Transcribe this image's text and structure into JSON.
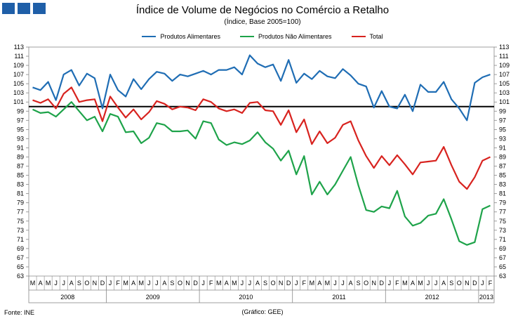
{
  "header": {
    "logo_squares": [
      "square",
      "square",
      "square"
    ]
  },
  "footer": {
    "source": "Fonte: INE",
    "credit": "(Gráfico:  GEE)"
  },
  "colors": {
    "alimentares": "#1f6db4",
    "nao_alimentares": "#1ea34a",
    "total": "#d8231f",
    "baseline": "#000000",
    "logo": "#1f5fa8"
  },
  "chart_data": {
    "type": "line",
    "title": "Índice de Volume de Negócios no Comércio a Retalho",
    "subtitle": "(Índice, Base 2005=100)",
    "ylim": [
      63,
      113
    ],
    "yticks": [
      63,
      65,
      67,
      69,
      71,
      73,
      75,
      77,
      79,
      81,
      83,
      85,
      87,
      89,
      91,
      93,
      95,
      97,
      99,
      101,
      103,
      105,
      107,
      109,
      111,
      113
    ],
    "reference_line": 100,
    "x": [
      "M",
      "A",
      "M",
      "J",
      "J",
      "A",
      "S",
      "O",
      "N",
      "D",
      "J",
      "F",
      "M",
      "A",
      "M",
      "J",
      "J",
      "A",
      "S",
      "O",
      "N",
      "D",
      "J",
      "F",
      "M",
      "A",
      "M",
      "J",
      "J",
      "A",
      "S",
      "O",
      "N",
      "D",
      "J",
      "F",
      "M",
      "A",
      "M",
      "J",
      "J",
      "A",
      "S",
      "O",
      "N",
      "D",
      "J",
      "F",
      "M",
      "A",
      "M",
      "J",
      "J",
      "A",
      "S",
      "O",
      "N",
      "D",
      "J",
      "F"
    ],
    "years": [
      {
        "label": "2008",
        "start": 0,
        "end": 10
      },
      {
        "label": "2009",
        "start": 10,
        "end": 22
      },
      {
        "label": "2010",
        "start": 22,
        "end": 34
      },
      {
        "label": "2011",
        "start": 34,
        "end": 46
      },
      {
        "label": "2012",
        "start": 46,
        "end": 58
      },
      {
        "label": "2013",
        "start": 58,
        "end": 60
      }
    ],
    "series": [
      {
        "name": "Produtos Alimentares",
        "color": "#1f6db4",
        "values": [
          104.2,
          103.6,
          105.4,
          101.4,
          107.0,
          108.0,
          104.6,
          107.2,
          106.2,
          99.6,
          107.0,
          103.6,
          102.2,
          106.0,
          103.8,
          106.0,
          107.6,
          107.2,
          105.6,
          107.0,
          106.6,
          107.2,
          107.8,
          107.0,
          108.0,
          108.0,
          108.6,
          107.0,
          111.2,
          109.4,
          108.6,
          109.2,
          105.6,
          110.2,
          105.2,
          107.2,
          106.0,
          107.8,
          106.6,
          106.2,
          108.2,
          106.8,
          105.0,
          104.4,
          99.8,
          103.4,
          100.0,
          99.6,
          102.6,
          99.0,
          104.8,
          103.2,
          103.2,
          105.4,
          101.6,
          99.6,
          97.0,
          105.2,
          106.4,
          107.0
        ]
      },
      {
        "name": "Produtos Não Alimentares",
        "color": "#1ea34a",
        "values": [
          99.4,
          98.6,
          98.8,
          97.8,
          99.4,
          101.0,
          99.0,
          97.0,
          97.8,
          94.6,
          98.4,
          97.8,
          94.4,
          94.6,
          92.0,
          93.2,
          96.4,
          96.0,
          94.6,
          94.6,
          94.8,
          93.0,
          96.8,
          96.4,
          92.8,
          91.6,
          92.2,
          91.8,
          92.6,
          94.4,
          92.2,
          90.8,
          88.2,
          90.4,
          85.2,
          89.2,
          80.8,
          83.6,
          80.8,
          83.0,
          86.0,
          89.0,
          82.8,
          77.4,
          77.0,
          78.2,
          77.8,
          81.6,
          76.0,
          74.0,
          74.6,
          76.2,
          76.6,
          79.8,
          75.4,
          70.6,
          69.8,
          70.4,
          77.6,
          78.4
        ]
      },
      {
        "name": "Total",
        "color": "#d8231f",
        "values": [
          101.4,
          100.8,
          101.6,
          99.6,
          102.8,
          104.2,
          101.0,
          101.4,
          101.6,
          96.8,
          102.2,
          99.8,
          97.6,
          99.4,
          97.2,
          98.8,
          101.2,
          100.6,
          99.4,
          100.0,
          99.8,
          99.2,
          101.6,
          101.0,
          99.6,
          99.0,
          99.4,
          98.6,
          100.8,
          101.0,
          99.2,
          99.0,
          96.0,
          99.2,
          94.4,
          97.2,
          91.8,
          94.6,
          92.0,
          93.2,
          96.0,
          96.8,
          92.6,
          89.2,
          86.6,
          89.2,
          87.2,
          89.4,
          87.4,
          85.2,
          87.8,
          88.0,
          88.2,
          91.2,
          87.2,
          83.6,
          82.0,
          84.6,
          88.2,
          89.0
        ]
      }
    ]
  }
}
